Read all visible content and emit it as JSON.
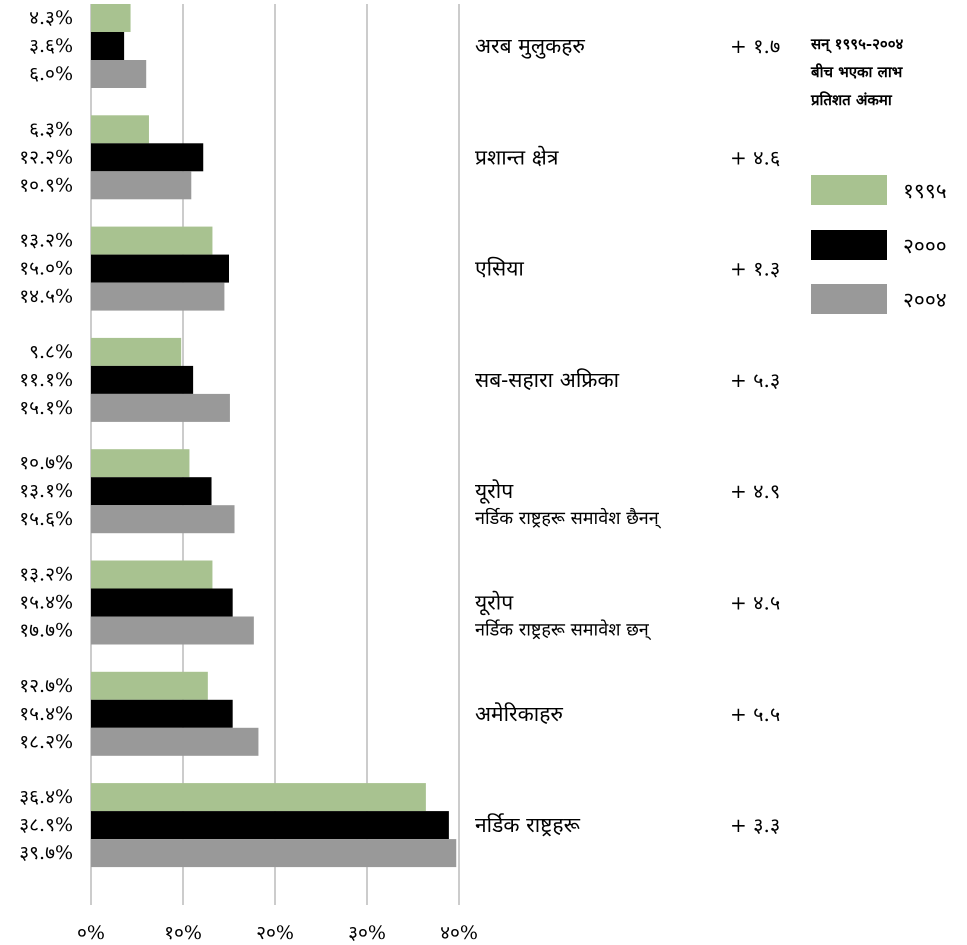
{
  "legend": {
    "title_lines": [
      "सन् १९९५-२००४",
      "बीच भएका लाभ",
      "प्रतिशत अंकमा"
    ],
    "items": [
      {
        "label": "१९९५",
        "color": "#a8c290"
      },
      {
        "label": "२०००",
        "color": "#000000"
      },
      {
        "label": "२००४",
        "color": "#999999"
      }
    ]
  },
  "chart_data": {
    "type": "bar",
    "orientation": "horizontal",
    "title": "",
    "xlabel": "",
    "ylabel": "",
    "xlim": [
      0,
      40
    ],
    "x_tick_labels": [
      "०%",
      "१०%",
      "२०%",
      "३०%",
      "४०%"
    ],
    "grid": true,
    "legend_placement": "right",
    "categories": [
      {
        "label": "अरब मुलुकहरु",
        "sublabel": "",
        "gain_label": "+ १.७"
      },
      {
        "label": "प्रशान्त क्षेत्र",
        "sublabel": "",
        "gain_label": "+ ४.६"
      },
      {
        "label": "एसिया",
        "sublabel": "",
        "gain_label": "+ १.३"
      },
      {
        "label": "सब-सहारा अफ्रिका",
        "sublabel": "",
        "gain_label": "+ ५.३"
      },
      {
        "label": "यूरोप",
        "sublabel": "नर्डिक राष्ट्रहरू समावेश छैनन्",
        "gain_label": "+ ४.९"
      },
      {
        "label": "यूरोप",
        "sublabel": "नर्डिक राष्ट्रहरू समावेश छन्",
        "gain_label": "+ ४.५"
      },
      {
        "label": "अमेरिकाहरु",
        "sublabel": "",
        "gain_label": "+ ५.५"
      },
      {
        "label": "नर्डिक राष्ट्रहरू",
        "sublabel": "",
        "gain_label": "+ ३.३"
      }
    ],
    "series": [
      {
        "name": "१९९५",
        "color": "#a8c290",
        "values": [
          4.3,
          6.3,
          13.2,
          9.8,
          10.7,
          13.2,
          12.7,
          36.4
        ],
        "value_labels": [
          "४.३%",
          "६.३%",
          "१३.२%",
          "९.८%",
          "१०.७%",
          "१३.२%",
          "१२.७%",
          "३६.४%"
        ]
      },
      {
        "name": "२०००",
        "color": "#000000",
        "values": [
          3.6,
          12.2,
          15.0,
          11.1,
          13.1,
          15.4,
          15.4,
          38.9
        ],
        "value_labels": [
          "३.६%",
          "१२.२%",
          "१५.०%",
          "११.१%",
          "१३.१%",
          "१५.४%",
          "१५.४%",
          "३८.९%"
        ]
      },
      {
        "name": "२००४",
        "color": "#999999",
        "values": [
          6.0,
          10.9,
          14.5,
          15.1,
          15.6,
          17.7,
          18.2,
          39.7
        ],
        "value_labels": [
          "६.०%",
          "१०.९%",
          "१४.५%",
          "१५.१%",
          "१५.६%",
          "१७.७%",
          "१८.२%",
          "३९.७%"
        ]
      }
    ]
  }
}
